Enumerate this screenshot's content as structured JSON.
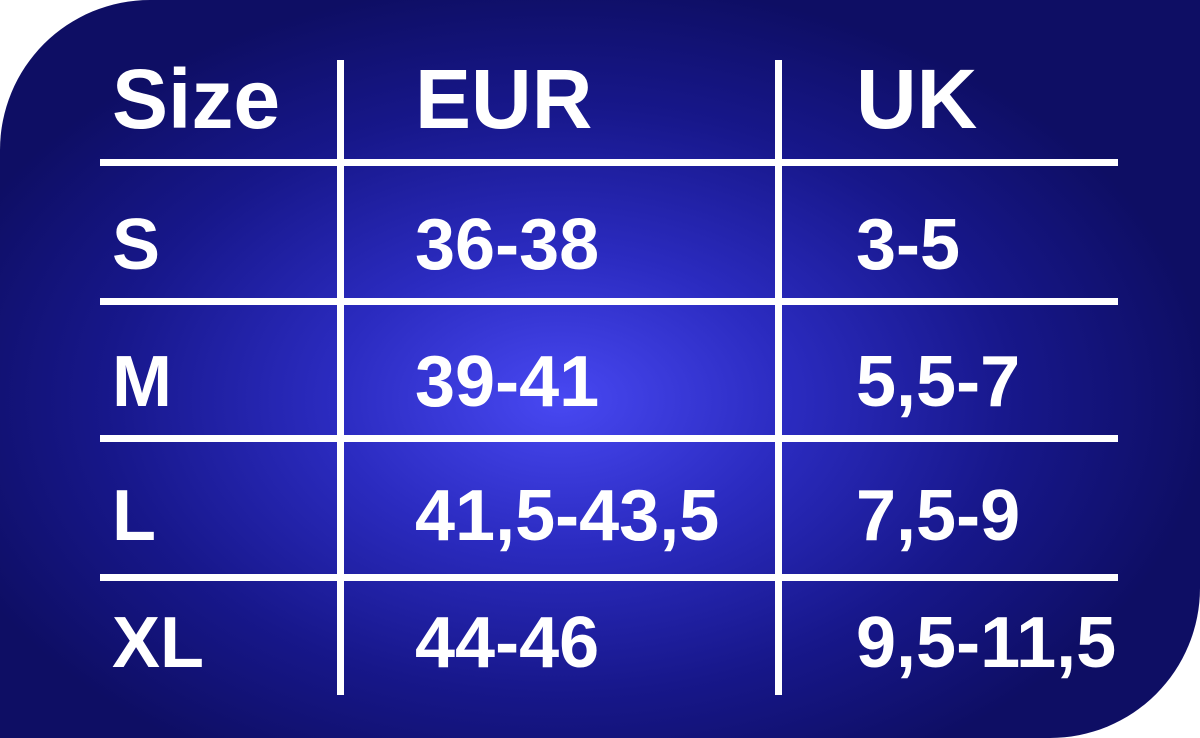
{
  "headers": [
    "Size",
    "EUR",
    "UK"
  ],
  "rows": [
    {
      "size": "S",
      "eur": "36-38",
      "uk": "3-5"
    },
    {
      "size": "M",
      "eur": "39-41",
      "uk": "5,5-7"
    },
    {
      "size": "L",
      "eur": "41,5-43,5",
      "uk": "7,5-9"
    },
    {
      "size": "XL",
      "eur": "44-46",
      "uk": "9,5-11,5"
    }
  ],
  "colors": {
    "background_center": "#4848f2",
    "background_edge": "#0e0e64",
    "text": "#ffffff"
  }
}
